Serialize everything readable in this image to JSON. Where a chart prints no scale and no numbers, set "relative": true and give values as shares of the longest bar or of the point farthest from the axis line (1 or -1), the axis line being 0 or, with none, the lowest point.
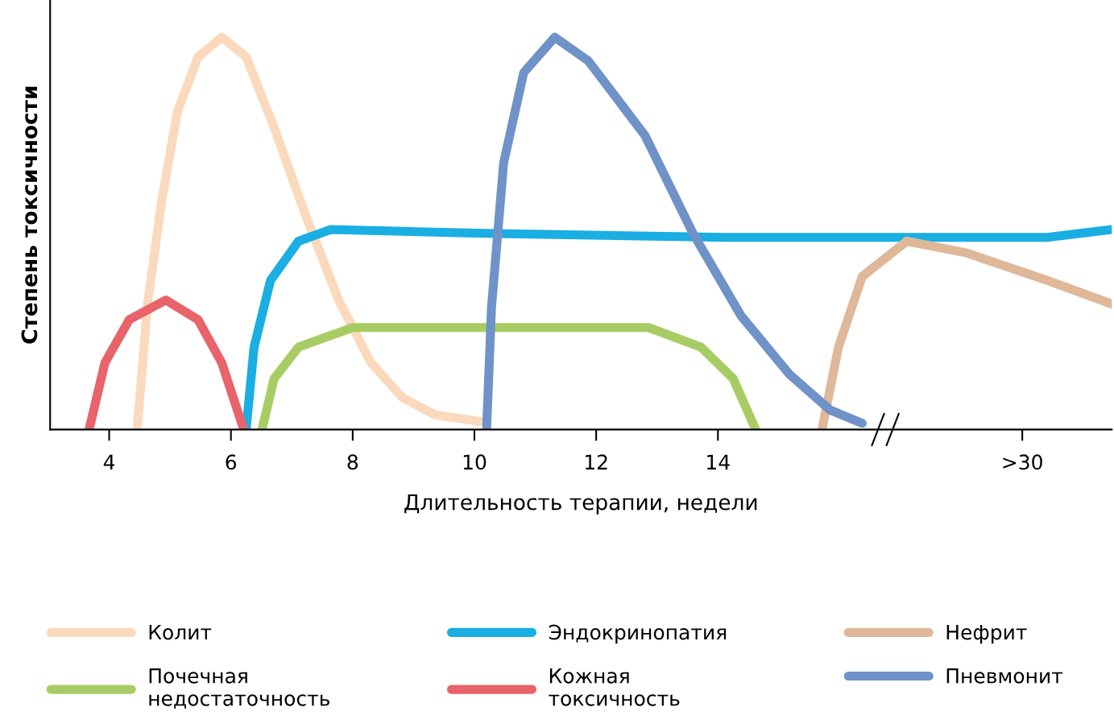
{
  "chart_data": {
    "type": "line",
    "relative": true,
    "xlabel": "Длительность терапии, недели",
    "ylabel": "Степень токсичности",
    "xlim": [
      3.03,
      20.47
    ],
    "xticks": [
      4,
      6,
      8,
      10,
      12,
      14,
      {
        "value": 19,
        "label": ">30"
      }
    ],
    "legend": "bottom",
    "grid": false,
    "marker": "none",
    "line_style": "solid",
    "series": [
      {
        "name": "Колит",
        "color": "#fbd9bc",
        "x": [
          4.46,
          4.63,
          4.86,
          5.12,
          5.46,
          5.85,
          6.25,
          6.71,
          7.24,
          7.77,
          8.3,
          8.83,
          9.36,
          10.11
        ],
        "values": [
          0,
          0.32,
          0.58,
          0.81,
          0.95,
          1.0,
          0.95,
          0.77,
          0.54,
          0.33,
          0.17,
          0.08,
          0.037,
          0.02
        ]
      },
      {
        "name": "Эндокринопатия",
        "color": "#1aaee3",
        "x": [
          6.25,
          6.38,
          6.65,
          7.11,
          7.64,
          10.16,
          14.12,
          18.09,
          19.41,
          20.47
        ],
        "values": [
          0,
          0.21,
          0.38,
          0.48,
          0.51,
          0.5,
          0.49,
          0.49,
          0.49,
          0.51
        ]
      },
      {
        "name": "Нефрит",
        "color": "#dfb89a",
        "x": [
          15.71,
          15.98,
          16.37,
          17.1,
          18.09,
          19.41,
          20.47
        ],
        "values": [
          0,
          0.21,
          0.39,
          0.48,
          0.45,
          0.38,
          0.32
        ]
      },
      {
        "name": "Почечная\nнедостаточность",
        "color": "#a8cc64",
        "x": [
          6.51,
          6.71,
          7.11,
          8.0,
          12.86,
          13.72,
          14.25,
          14.62
        ],
        "values": [
          0,
          0.13,
          0.21,
          0.26,
          0.26,
          0.21,
          0.13,
          0
        ]
      },
      {
        "name": "Кожная\nтоксичность",
        "color": "#e8646a",
        "x": [
          3.67,
          3.93,
          4.33,
          4.93,
          5.46,
          5.85,
          6.21
        ],
        "values": [
          0,
          0.17,
          0.28,
          0.33,
          0.28,
          0.17,
          0
        ]
      },
      {
        "name": "Пневмонит",
        "color": "#6f93c8",
        "x": [
          10.2,
          10.28,
          10.48,
          10.81,
          11.32,
          11.87,
          12.8,
          13.59,
          14.38,
          15.18,
          15.84,
          16.37
        ],
        "values": [
          0,
          0.31,
          0.68,
          0.91,
          1.0,
          0.94,
          0.75,
          0.5,
          0.29,
          0.14,
          0.05,
          0.016
        ]
      }
    ]
  }
}
